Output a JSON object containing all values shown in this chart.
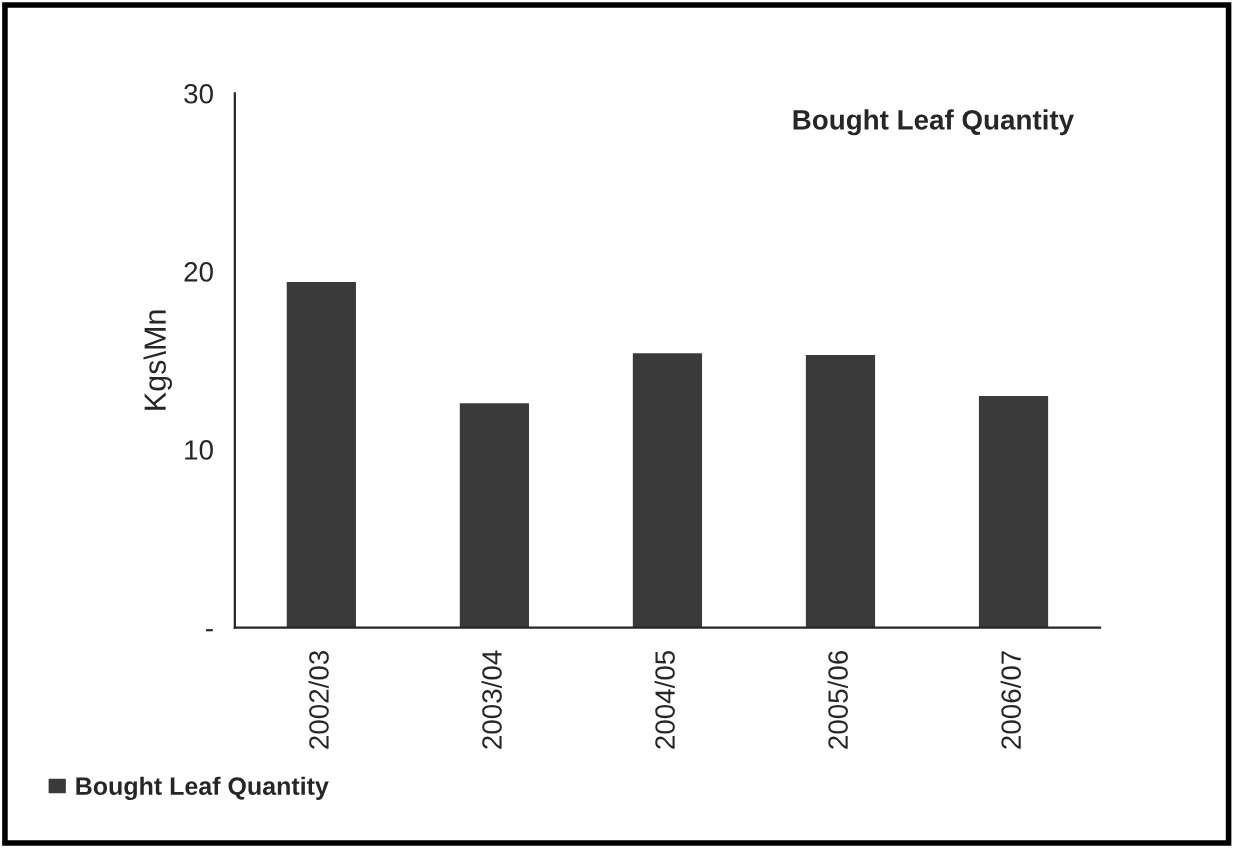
{
  "chart_data": {
    "type": "bar",
    "title": "Bought Leaf Quantity",
    "ylabel": "Kgs\\Mn",
    "categories": [
      "2002/03",
      "2003/04",
      "2004/05",
      "2005/06",
      "2006/07"
    ],
    "series": [
      {
        "name": "Bought Leaf Quantity",
        "color": "#3a3a3a",
        "values": [
          19.4,
          12.6,
          15.4,
          15.3,
          13.0
        ]
      }
    ],
    "ylim": [
      0,
      30
    ],
    "yticks": [
      {
        "value": 0,
        "label": "-"
      },
      10,
      20,
      30
    ],
    "grid": false,
    "legend": "bottom left"
  }
}
